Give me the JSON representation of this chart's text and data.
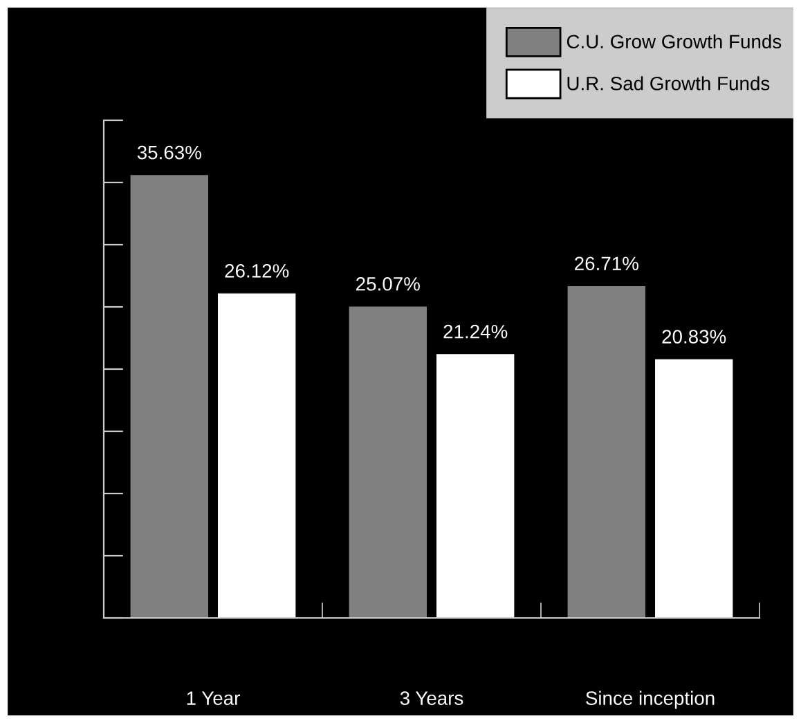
{
  "chart_data": {
    "type": "bar",
    "categories": [
      "1 Year",
      "3 Years",
      "Since inception"
    ],
    "series": [
      {
        "name": "C.U. Grow Growth Funds",
        "color": "#808080",
        "values": [
          35.63,
          25.07,
          26.71
        ],
        "value_labels": [
          "35.63%",
          "25.07%",
          "26.71%"
        ]
      },
      {
        "name": "U.R. Sad Growth Funds",
        "color": "#ffffff",
        "values": [
          26.12,
          21.24,
          20.83
        ],
        "value_labels": [
          "26.12%",
          "21.24%",
          "20.83%"
        ]
      }
    ],
    "ylim": [
      0,
      40
    ],
    "yticks": [
      {
        "value": 0,
        "label": null
      },
      {
        "value": 5,
        "label": null
      },
      {
        "value": 10,
        "label": null
      },
      {
        "value": 15,
        "label": null
      },
      {
        "value": 20,
        "label": null
      },
      {
        "value": 25,
        "label": null
      },
      {
        "value": 30,
        "label": null
      },
      {
        "value": 35,
        "label": null
      },
      {
        "value": 40,
        "label": null
      }
    ],
    "legend": "top right",
    "grid": false
  }
}
